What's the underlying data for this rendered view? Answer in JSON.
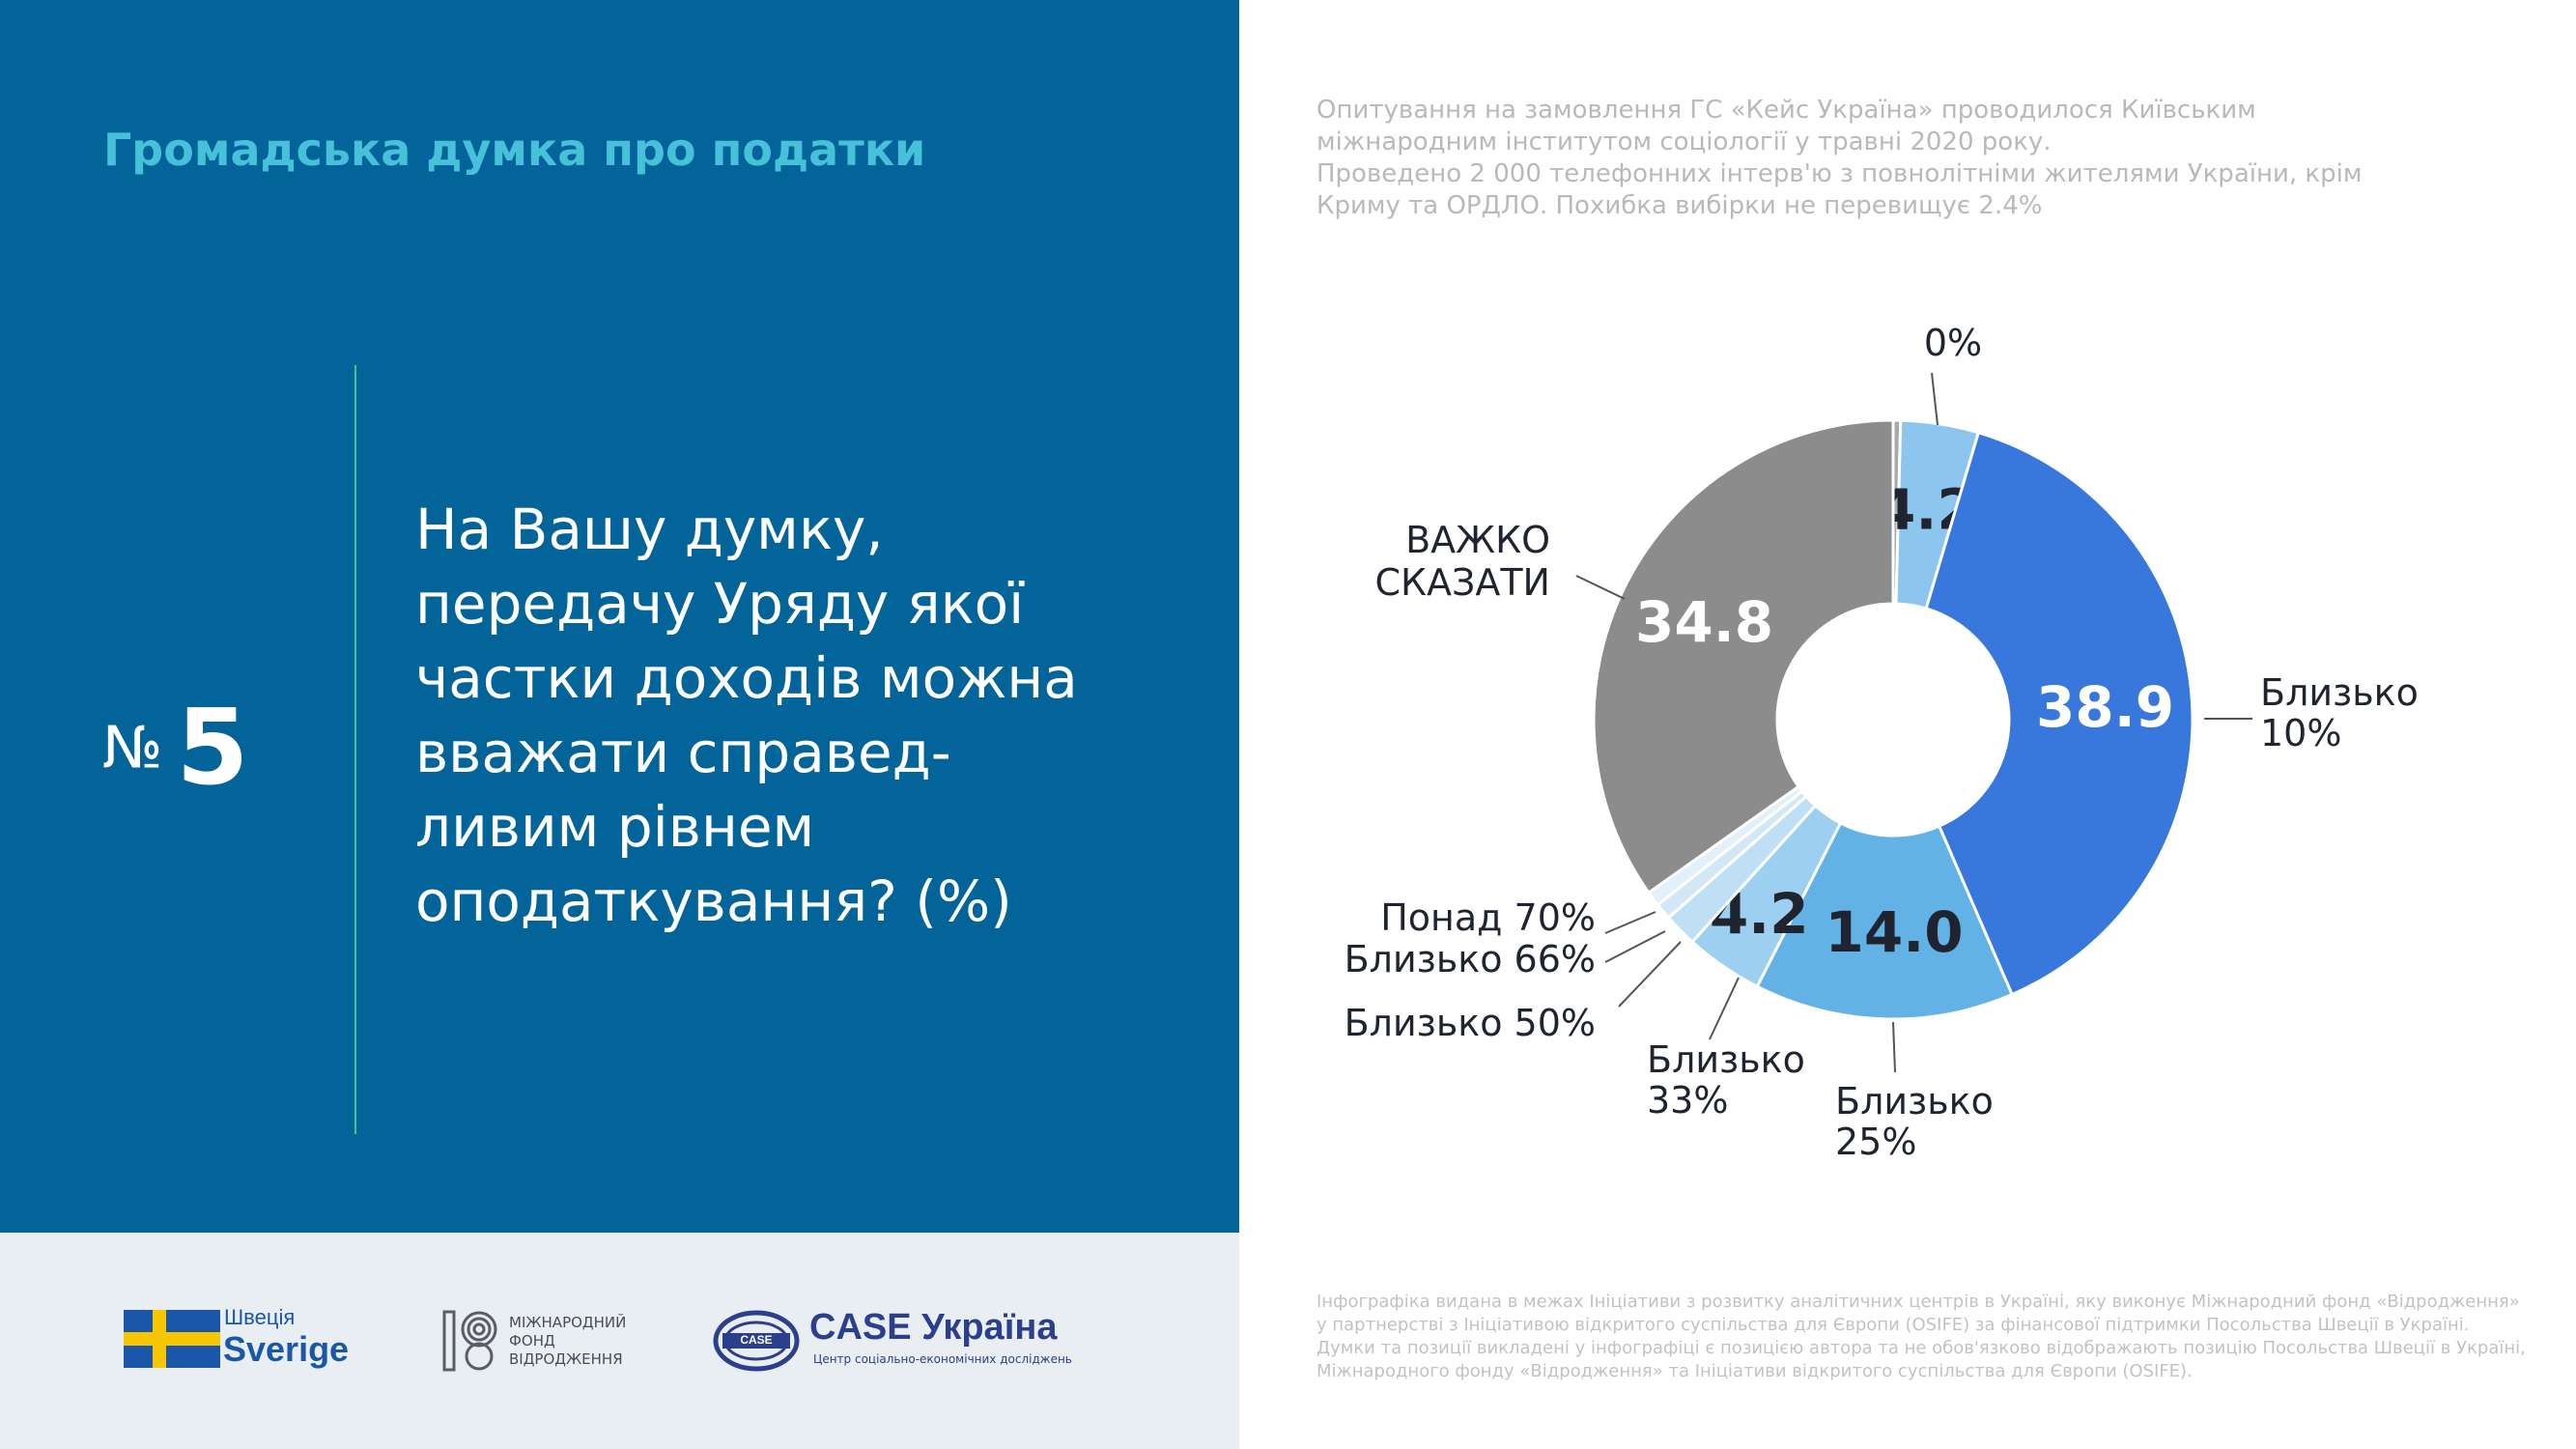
{
  "header": {
    "series_title": "Громадська думка про податки",
    "number_sign": "№",
    "number_value": "5"
  },
  "question": {
    "lines": [
      "На Вашу думку,",
      "передачу Уряду якої",
      "частки доходів можна",
      "вважати справед-",
      "ливим рівнем",
      "оподаткування? (%)"
    ]
  },
  "survey_note": {
    "lines": [
      "Опитування на замовлення ГС «Кейс Україна» проводилося Київським",
      "міжнародним інститутом соціології у травні 2020 року.",
      "Проведено 2 000 телефонних інтерв'ю з повнолітніми жителями України, крім",
      "Криму та ОРДЛО. Похибка вибірки не перевищує 2.4%"
    ]
  },
  "footer_note": {
    "lines": [
      "Інфографіка видана в межах Ініціативи з розвитку аналітичних центрів в Україні, яку виконує Міжнародний фонд «Відродження»",
      "у партнерстві з Ініціативою відкритого суспільства для Європи (OSIFE) за фінансової підтримки Посольства Швеції в Україні.",
      "Думки та позиції викладені у інфографіці є позицією автора та не обов'язково відображають позицію Посольства Швеції в Україні,",
      "Міжнародного фонду «Відродження» та Ініціативи відкритого суспільства для Європи (OSIFE)."
    ]
  },
  "logos": {
    "sweden": {
      "top": "Швеція",
      "bottom": "Sverige"
    },
    "irf": {
      "lines": [
        "МІЖНАРОДНИЙ",
        "ФОНД",
        "ВІДРОДЖЕННЯ"
      ]
    },
    "case": {
      "emblem": "CASE",
      "title": "CASE Україна",
      "subtitle": "Центр соціально-економічних досліджень"
    }
  },
  "colors": {
    "panel": "#03649a",
    "accent_title": "#47c0da",
    "divider": "#3fc59a",
    "bottom_band": "#e8eef2"
  },
  "chart_data": {
    "type": "donut",
    "slices": [
      {
        "label": "0%",
        "value": 0.4,
        "value_label": "",
        "color": "#a9a9a9"
      },
      {
        "label": "",
        "value": 4.2,
        "value_label": "4.2",
        "color": "#8cc6ee"
      },
      {
        "label": "Близько 10%",
        "value": 38.9,
        "value_label": "38.9",
        "color": "#3878dc"
      },
      {
        "label": "Близько 25%",
        "value": 14.0,
        "value_label": "14.0",
        "color": "#62b2e6"
      },
      {
        "label": "Близько 33%",
        "value": 4.2,
        "value_label": "4.2",
        "color": "#9dcff0"
      },
      {
        "label": "Близько 50%",
        "value": 1.8,
        "value_label": "",
        "color": "#bfdff5"
      },
      {
        "label": "Близько 66%",
        "value": 0.9,
        "value_label": "",
        "color": "#d2e8f7"
      },
      {
        "label": "Понад 70%",
        "value": 0.8,
        "value_label": "",
        "color": "#e2f0fa"
      },
      {
        "label": "ВАЖКО СКАЗАТИ",
        "value": 34.8,
        "value_label": "34.8",
        "color": "#8c8c8c"
      }
    ]
  }
}
